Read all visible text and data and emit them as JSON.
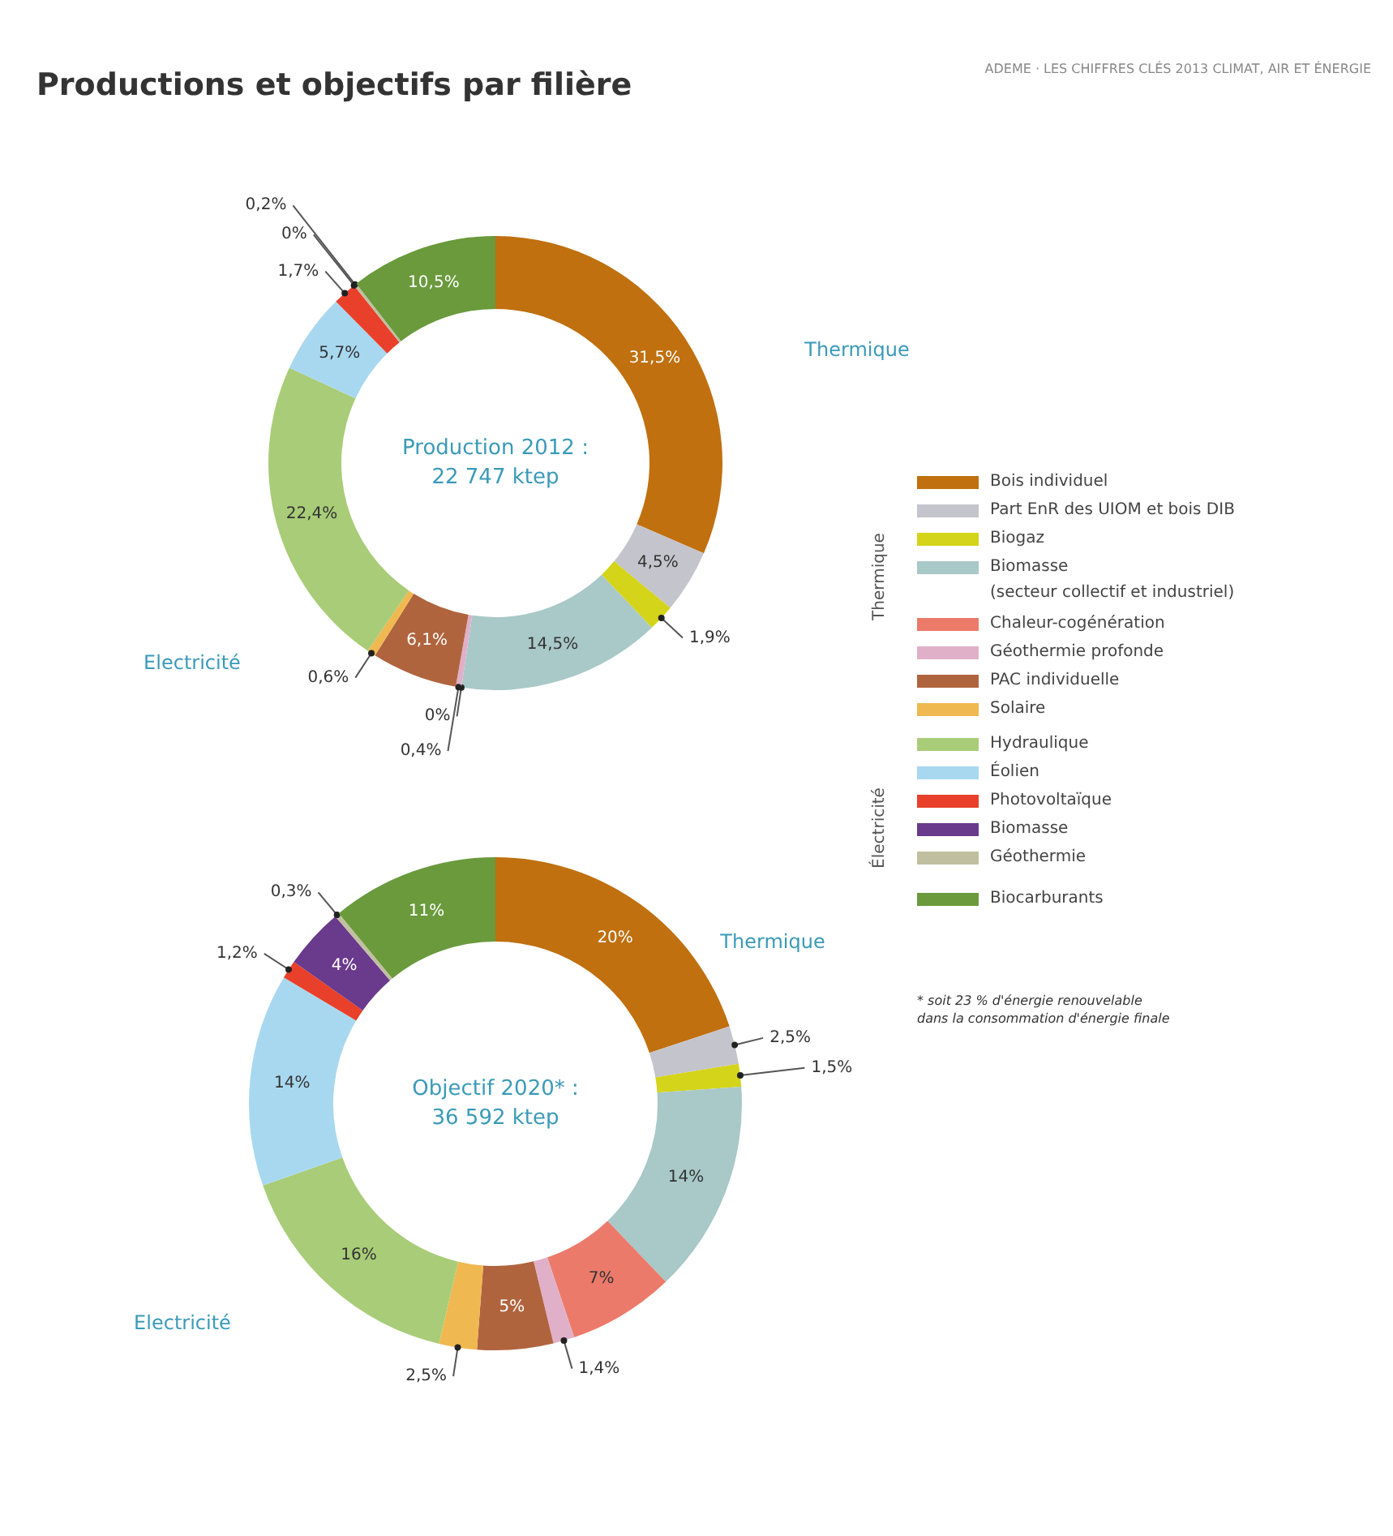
{
  "chart_data": [
    {
      "type": "donut",
      "title": "Productions et objectifs par filière",
      "categories": [
        "Bois individuel",
        "Part EnR des UIOM et bois DIB",
        "Biogaz",
        "Biomasse\n(secteur collectif et industriel)",
        "Chaleur-cogénération",
        "Géothermie profonde",
        "PAC individuelle",
        "Solaire",
        "Hydraulique",
        "Éolien",
        "Photovoltaïque",
        "Biomasse",
        "Géothermie",
        "Biocarburants"
      ],
      "values": [
        31.5,
        4.5,
        1.9,
        14.5,
        0,
        0.4,
        6.1,
        0.6,
        22.4,
        5.7,
        1.7,
        0,
        0.2,
        10.5
      ],
      "value_labels": [
        "31,5%",
        "4,5%",
        "1,9%",
        "14,5%",
        "0%",
        "0,4%",
        "6,1%",
        "0,6%",
        "22,4%",
        "5,7%",
        "1,7%",
        "0%",
        "0,2%",
        "10,5%"
      ],
      "colors": [
        "#c0700f",
        "#c4c4cc",
        "#d4d41a",
        "#a9c8c8",
        "#ec7a6a",
        "#e0b0c8",
        "#b0643e",
        "#f0b850",
        "#a9cc78",
        "#a8d8f0",
        "#e8402a",
        "#6a3a8c",
        "#c0c0a0",
        "#6a9a3c"
      ],
      "legend": "right",
      "annotations": [
        "ADEME · LES CHIFFRES CLÉS 2013 CLIMAT, AIR ET ÉNERGIE",
        "Production 2012 :\n22 747 ktep",
        "Thermique",
        "Electricité",
        "Thermique",
        "Électricité"
      ]
    },
    {
      "type": "donut",
      "categories": [
        null,
        null,
        null,
        null,
        null,
        null,
        null,
        null,
        null,
        null,
        null,
        null,
        null,
        null
      ],
      "values": [
        20,
        2.5,
        1.5,
        14,
        7,
        1.4,
        5,
        2.5,
        16,
        14,
        1.2,
        4,
        0.3,
        11
      ],
      "value_labels": [
        "20%",
        "2,5%",
        "1,5%",
        "14%",
        "7%",
        "1,4%",
        "5%",
        "2,5%",
        "16%",
        "14%",
        "1,2%",
        "4%",
        "0,3%",
        "11%"
      ],
      "colors": [
        "#c0700f",
        "#c4c4cc",
        "#d4d41a",
        "#a9c8c8",
        "#ec7a6a",
        "#e0b0c8",
        "#b0643e",
        "#f0b850",
        "#a9cc78",
        "#a8d8f0",
        "#e8402a",
        "#6a3a8c",
        "#c0c0a0",
        "#6a9a3c"
      ],
      "annotations": [
        "Objectif 2020* :\n36 592 ktep",
        "Thermique",
        "Electricité",
        "* soit 23 % d'énergie renouvelable\ndans la consommation d'énergie finale"
      ]
    }
  ]
}
